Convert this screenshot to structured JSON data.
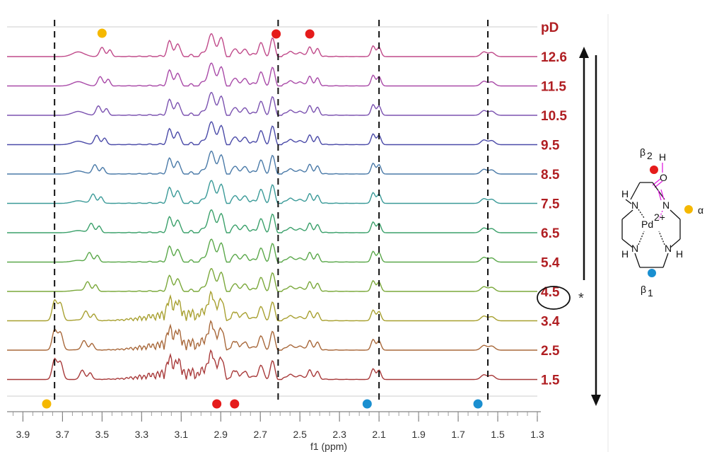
{
  "chart_data": {
    "type": "line",
    "title": "",
    "xlabel": "f1 (ppm)",
    "ylabel": "",
    "xlim": [
      3.98,
      1.3
    ],
    "x_reversed": true,
    "x_ticks": [
      "3.9",
      "3.7",
      "3.5",
      "3.3",
      "3.1",
      "2.9",
      "2.7",
      "2.5",
      "2.3",
      "2.1",
      "1.9",
      "1.7",
      "1.5",
      "1.3"
    ],
    "x_tick_values": [
      3.9,
      3.7,
      3.5,
      3.3,
      3.1,
      2.9,
      2.7,
      2.5,
      2.3,
      2.1,
      1.9,
      1.7,
      1.5,
      1.3
    ],
    "legend_title": "pD",
    "series": [
      {
        "name": "12.6",
        "color": "#c04a8a"
      },
      {
        "name": "11.5",
        "color": "#a94aa8"
      },
      {
        "name": "10.5",
        "color": "#7b52b0"
      },
      {
        "name": "9.5",
        "color": "#4a4aa8"
      },
      {
        "name": "8.5",
        "color": "#4a7aa8"
      },
      {
        "name": "7.5",
        "color": "#3a9a98"
      },
      {
        "name": "6.5",
        "color": "#3aa06a"
      },
      {
        "name": "5.4",
        "color": "#5aa84a"
      },
      {
        "name": "4.5",
        "color": "#7aa83a"
      },
      {
        "name": "3.4",
        "color": "#a8a030"
      },
      {
        "name": "2.5",
        "color": "#a8683a"
      },
      {
        "name": "1.5",
        "color": "#a83a3a"
      }
    ],
    "dashed_lines_ppm": [
      3.74,
      2.61,
      2.1,
      1.55
    ],
    "peaks_ppm": [
      3.74,
      3.5,
      3.16,
      3.1,
      2.95,
      2.9,
      2.8,
      2.7,
      2.63,
      2.45,
      2.42,
      2.13,
      2.1,
      1.57,
      1.53
    ],
    "highlighted_series": "4.5",
    "highlight_marker": "*",
    "annotation_dots": [
      {
        "ppm": 3.78,
        "position": "bottom",
        "color": "#f5b800"
      },
      {
        "ppm": 2.92,
        "position": "bottom",
        "color": "#e51b1b"
      },
      {
        "ppm": 2.83,
        "position": "bottom",
        "color": "#e51b1b"
      },
      {
        "ppm": 2.16,
        "position": "bottom",
        "color": "#1a8fd0"
      },
      {
        "ppm": 1.6,
        "position": "bottom",
        "color": "#1a8fd0"
      },
      {
        "ppm": 3.5,
        "position": "top",
        "color": "#f5b800"
      },
      {
        "ppm": 2.62,
        "position": "top",
        "color": "#e51b1b"
      },
      {
        "ppm": 2.45,
        "position": "top",
        "color": "#e51b1b"
      }
    ]
  },
  "molecule": {
    "beta2_label": "β",
    "beta2_sub": "2",
    "beta1_label": "β",
    "beta1_sub": "1",
    "alpha_label": "α",
    "metal": "Pd",
    "charge": "2+",
    "h": "H",
    "n": "N",
    "o": "O",
    "colors": {
      "beta2_dot": "#e51b1b",
      "beta1_dot": "#1a8fd0",
      "alpha_dot": "#f5b800",
      "imine": "#e020e0"
    }
  }
}
